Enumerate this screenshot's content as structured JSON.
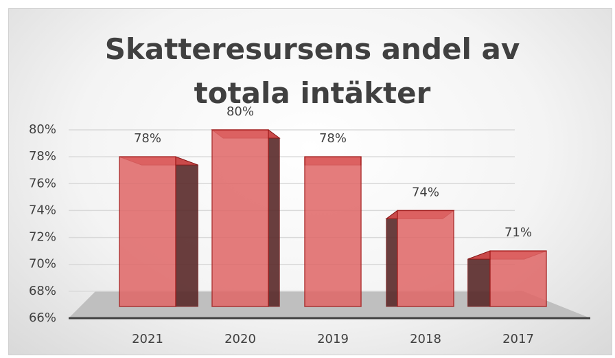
{
  "chart_data": {
    "type": "bar3d",
    "title": "Skatteresursens andel av totala intäkter",
    "categories": [
      "2021",
      "2020",
      "2019",
      "2018",
      "2017"
    ],
    "values": [
      78,
      80,
      78,
      74,
      71
    ],
    "value_labels": [
      "78%",
      "80%",
      "78%",
      "74%",
      "71%"
    ],
    "color": "#e06666",
    "ylim": [
      66,
      80
    ],
    "yticks": [
      {
        "value": 66,
        "label": "66%"
      },
      {
        "value": 68,
        "label": "68%"
      },
      {
        "value": 70,
        "label": "70%"
      },
      {
        "value": 72,
        "label": "72%"
      },
      {
        "value": 74,
        "label": "74%"
      },
      {
        "value": 76,
        "label": "76%"
      },
      {
        "value": 78,
        "label": "78%"
      },
      {
        "value": 80,
        "label": "80%"
      }
    ],
    "grid": true
  }
}
